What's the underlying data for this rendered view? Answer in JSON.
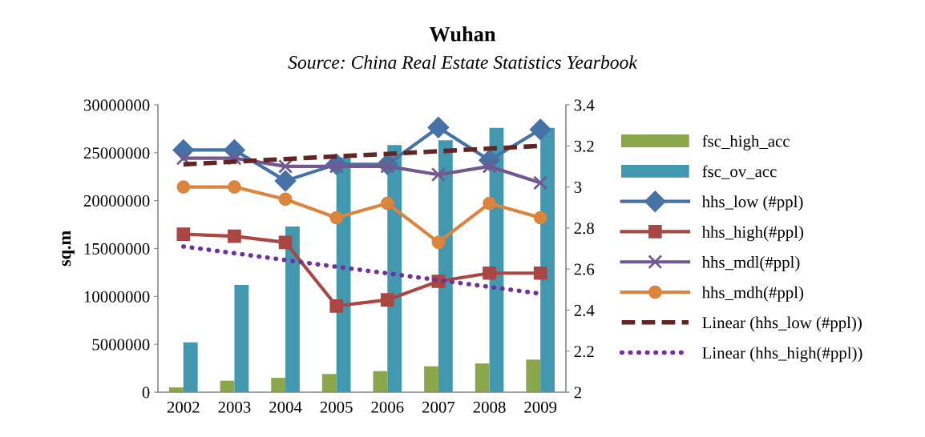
{
  "chart_data": {
    "type": "bar",
    "title": "Wuhan",
    "subtitle": "Source: China Real Estate Statistics Yearbook",
    "ylabel": "sq.m",
    "categories": [
      "2002",
      "2003",
      "2004",
      "2005",
      "2006",
      "2007",
      "2008",
      "2009"
    ],
    "series": [
      {
        "name": "fsc_high_acc",
        "color": "#8aa84b",
        "values": [
          500000,
          1200000,
          1500000,
          1900000,
          2200000,
          2700000,
          3000000,
          3400000
        ]
      },
      {
        "name": "fsc_ov_acc",
        "color": "#4198af",
        "values": [
          5200000,
          11200000,
          17300000,
          24500000,
          25800000,
          26300000,
          27600000,
          27600000
        ]
      },
      {
        "name": "hhs_low (#ppl)",
        "type": "line",
        "axis": "y2",
        "color": "#4572a7",
        "marker": "diamond",
        "line_style": "solid",
        "values": [
          3.18,
          3.18,
          3.03,
          3.11,
          3.11,
          3.29,
          3.13,
          3.28
        ]
      },
      {
        "name": "hhs_high(#ppl)",
        "type": "line",
        "axis": "y2",
        "color": "#aa4643",
        "marker": "square",
        "line_style": "solid",
        "values": [
          2.77,
          2.76,
          2.73,
          2.42,
          2.45,
          2.54,
          2.58,
          2.58
        ]
      },
      {
        "name": "hhs_mdl(#ppl)",
        "type": "line",
        "axis": "y2",
        "color": "#71588f",
        "marker": "cross",
        "line_style": "solid",
        "values": [
          3.14,
          3.14,
          3.1,
          3.1,
          3.1,
          3.06,
          3.1,
          3.02
        ]
      },
      {
        "name": "hhs_mdh(#ppl)",
        "type": "line",
        "axis": "y2",
        "color": "#db843d",
        "marker": "circle",
        "line_style": "solid",
        "values": [
          3.0,
          3.0,
          2.94,
          2.85,
          2.92,
          2.73,
          2.92,
          2.85
        ]
      },
      {
        "name": "Linear (hhs_low (#ppl))",
        "type": "line",
        "axis": "y2",
        "color": "#632523",
        "marker": "none",
        "line_style": "dashed",
        "values": [
          3.11,
          3.123,
          3.136,
          3.149,
          3.161,
          3.174,
          3.187,
          3.2
        ]
      },
      {
        "name": "Linear (hhs_high(#ppl))",
        "type": "line",
        "axis": "y2",
        "color": "#7030a0",
        "marker": "none",
        "line_style": "dotted",
        "values": [
          2.71,
          2.677,
          2.644,
          2.611,
          2.579,
          2.546,
          2.513,
          2.48
        ]
      }
    ],
    "ylim": [
      0,
      30000000
    ],
    "yticks": [
      0,
      5000000,
      10000000,
      15000000,
      20000000,
      25000000,
      30000000
    ],
    "y2lim": [
      2,
      3.4
    ],
    "y2ticks": [
      {
        "value": 2,
        "label": "2"
      },
      {
        "value": 2.2,
        "label": "2.2"
      },
      {
        "value": 2.4,
        "label": "2.4"
      },
      {
        "value": 2.6,
        "label": "2.6"
      },
      {
        "value": 2.8,
        "label": "2.8"
      },
      {
        "value": 3,
        "label": "3"
      },
      {
        "value": 3.2,
        "label": "3.2"
      },
      {
        "value": 3.4,
        "label": "3.4"
      }
    ],
    "grid": false,
    "legend": "right"
  }
}
